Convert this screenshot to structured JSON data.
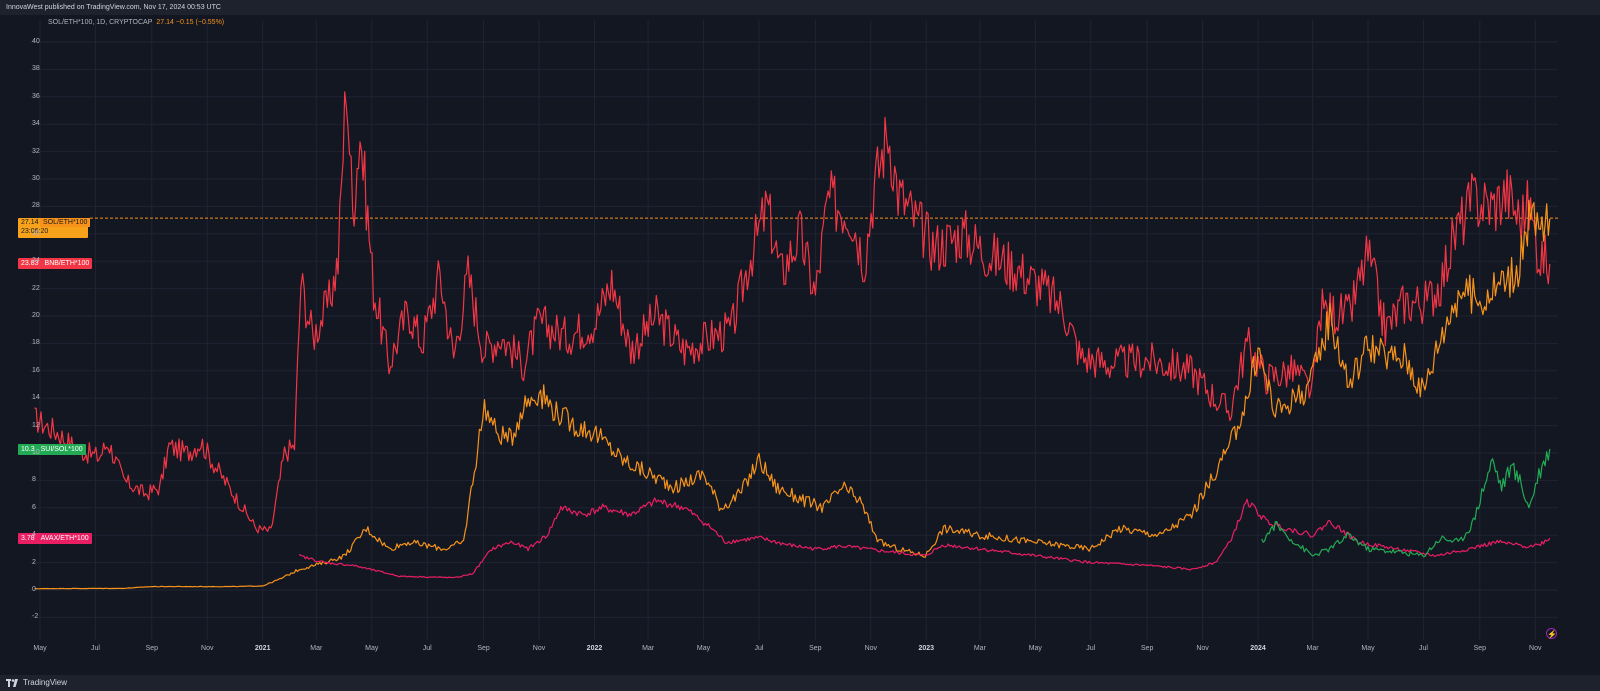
{
  "header": {
    "publisher_text": "InnovaWest published on TradingView.com, Nov 17, 2024 00:53 UTC"
  },
  "footer": {
    "brand": "TradingView"
  },
  "legend": {
    "symbol_text": "SOL/ETH*100, 1D, CRYPTOCAP",
    "value_text": "27.14 −0.15 (−0.55%)"
  },
  "badges": {
    "sol": {
      "value": "27.14",
      "name": "SOL/ETH*100",
      "time": "23:06:20"
    },
    "bnb": {
      "value": "23.83",
      "name": "BNB/ETH*100"
    },
    "sui": {
      "value": "10.3",
      "name": "SUI/SOL*100"
    },
    "avax": {
      "value": "3.78",
      "name": "AVAX/ETH*100"
    }
  },
  "icons": [
    "tradingview-logo-icon",
    "lightning-icon"
  ],
  "colors": {
    "background": "#131722",
    "grid": "#1f2433",
    "bnb": "#f23645",
    "sol": "#f7931a",
    "avax": "#e91e63",
    "sui": "#22ab54",
    "axis_text": "#b2b5be"
  },
  "chart_data": {
    "type": "line",
    "title": "",
    "xlabel": "",
    "ylabel": "",
    "ylim": [
      -3,
      41
    ],
    "yticks": [
      -2,
      0,
      2,
      4,
      6,
      8,
      10,
      12,
      14,
      16,
      18,
      20,
      22,
      24,
      26,
      28,
      30,
      32,
      34,
      36,
      38,
      40
    ],
    "x_ticks": [
      {
        "date": "2020-05-01",
        "label": "May"
      },
      {
        "date": "2020-07-01",
        "label": "Jul"
      },
      {
        "date": "2020-09-01",
        "label": "Sep"
      },
      {
        "date": "2020-11-01",
        "label": "Nov"
      },
      {
        "date": "2021-01-01",
        "label": "2021"
      },
      {
        "date": "2021-03-01",
        "label": "Mar"
      },
      {
        "date": "2021-05-01",
        "label": "May"
      },
      {
        "date": "2021-07-01",
        "label": "Jul"
      },
      {
        "date": "2021-09-01",
        "label": "Sep"
      },
      {
        "date": "2021-11-01",
        "label": "Nov"
      },
      {
        "date": "2022-01-01",
        "label": "2022"
      },
      {
        "date": "2022-03-01",
        "label": "Mar"
      },
      {
        "date": "2022-05-01",
        "label": "May"
      },
      {
        "date": "2022-07-01",
        "label": "Jul"
      },
      {
        "date": "2022-09-01",
        "label": "Sep"
      },
      {
        "date": "2022-11-01",
        "label": "Nov"
      },
      {
        "date": "2023-01-01",
        "label": "2023"
      },
      {
        "date": "2023-03-01",
        "label": "Mar"
      },
      {
        "date": "2023-05-01",
        "label": "May"
      },
      {
        "date": "2023-07-01",
        "label": "Jul"
      },
      {
        "date": "2023-09-01",
        "label": "Sep"
      },
      {
        "date": "2023-11-01",
        "label": "Nov"
      },
      {
        "date": "2024-01-01",
        "label": "2024"
      },
      {
        "date": "2024-03-01",
        "label": "Mar"
      },
      {
        "date": "2024-05-01",
        "label": "May"
      },
      {
        "date": "2024-07-01",
        "label": "Jul"
      },
      {
        "date": "2024-09-01",
        "label": "Sep"
      },
      {
        "date": "2024-11-01",
        "label": "Nov"
      }
    ],
    "x_range": [
      "2020-04-20",
      "2024-11-26"
    ],
    "horizontal_line": {
      "value": 27.14,
      "style": "dashed",
      "series": "SOL/ETH*100"
    },
    "series": [
      {
        "name": "BNB/ETH*100",
        "color": "#f23645",
        "points": [
          [
            "2020-04-25",
            12.5
          ],
          [
            "2020-05-20",
            11.5
          ],
          [
            "2020-06-10",
            10.3
          ],
          [
            "2020-07-05",
            9.7
          ],
          [
            "2020-07-15",
            10.8
          ],
          [
            "2020-08-01",
            8.0
          ],
          [
            "2020-08-25",
            7.0
          ],
          [
            "2020-09-10",
            7.5
          ],
          [
            "2020-09-20",
            10.5
          ],
          [
            "2020-10-10",
            10.0
          ],
          [
            "2020-10-25",
            10.8
          ],
          [
            "2020-11-10",
            9.0
          ],
          [
            "2020-12-05",
            6.5
          ],
          [
            "2020-12-25",
            4.5
          ],
          [
            "2021-01-10",
            4.3
          ],
          [
            "2021-01-25",
            10.0
          ],
          [
            "2021-02-05",
            10.5
          ],
          [
            "2021-02-12",
            22.5
          ],
          [
            "2021-02-25",
            18.5
          ],
          [
            "2021-03-15",
            21.0
          ],
          [
            "2021-03-25",
            24.0
          ],
          [
            "2021-04-03",
            37.5
          ],
          [
            "2021-04-10",
            27.5
          ],
          [
            "2021-04-18",
            33.5
          ],
          [
            "2021-04-25",
            28.5
          ],
          [
            "2021-05-03",
            22.0
          ],
          [
            "2021-05-20",
            16.5
          ],
          [
            "2021-06-10",
            20.5
          ],
          [
            "2021-06-25",
            18.0
          ],
          [
            "2021-07-15",
            23.0
          ],
          [
            "2021-07-30",
            17.0
          ],
          [
            "2021-08-15",
            23.0
          ],
          [
            "2021-09-01",
            17.5
          ],
          [
            "2021-09-20",
            18.5
          ],
          [
            "2021-10-15",
            16.5
          ],
          [
            "2021-11-01",
            19.5
          ],
          [
            "2021-12-01",
            18.5
          ],
          [
            "2022-01-01",
            19.5
          ],
          [
            "2022-01-20",
            22.5
          ],
          [
            "2022-02-10",
            17.5
          ],
          [
            "2022-03-10",
            20.0
          ],
          [
            "2022-04-10",
            17.5
          ],
          [
            "2022-05-10",
            18.5
          ],
          [
            "2022-06-01",
            19.0
          ],
          [
            "2022-06-20",
            24.0
          ],
          [
            "2022-07-10",
            28.0
          ],
          [
            "2022-07-25",
            23.0
          ],
          [
            "2022-08-15",
            26.0
          ],
          [
            "2022-09-01",
            21.5
          ],
          [
            "2022-09-15",
            28.5
          ],
          [
            "2022-10-10",
            27.5
          ],
          [
            "2022-10-25",
            24.0
          ],
          [
            "2022-11-05",
            29.5
          ],
          [
            "2022-11-20",
            33.5
          ],
          [
            "2022-12-01",
            29.0
          ],
          [
            "2022-12-20",
            27.0
          ],
          [
            "2023-01-10",
            25.0
          ],
          [
            "2023-02-10",
            26.0
          ],
          [
            "2023-03-10",
            24.5
          ],
          [
            "2023-04-10",
            23.5
          ],
          [
            "2023-05-10",
            22.0
          ],
          [
            "2023-06-01",
            20.5
          ],
          [
            "2023-06-20",
            17.0
          ],
          [
            "2023-07-20",
            16.5
          ],
          [
            "2023-09-01",
            16.8
          ],
          [
            "2023-10-20",
            16.0
          ],
          [
            "2023-11-15",
            14.0
          ],
          [
            "2023-12-01",
            13.0
          ],
          [
            "2023-12-10",
            15.5
          ],
          [
            "2023-12-20",
            18.0
          ],
          [
            "2024-01-10",
            15.5
          ],
          [
            "2024-02-10",
            16.0
          ],
          [
            "2024-03-01",
            14.5
          ],
          [
            "2024-03-10",
            20.5
          ],
          [
            "2024-04-10",
            20.0
          ],
          [
            "2024-05-01",
            24.5
          ],
          [
            "2024-05-20",
            19.0
          ],
          [
            "2024-06-10",
            21.0
          ],
          [
            "2024-07-05",
            21.0
          ],
          [
            "2024-07-20",
            22.5
          ],
          [
            "2024-08-05",
            26.0
          ],
          [
            "2024-08-25",
            28.5
          ],
          [
            "2024-09-15",
            28.0
          ],
          [
            "2024-10-01",
            29.0
          ],
          [
            "2024-10-15",
            27.0
          ],
          [
            "2024-10-25",
            28.0
          ],
          [
            "2024-11-05",
            24.5
          ],
          [
            "2024-11-17",
            23.8
          ]
        ]
      },
      {
        "name": "SOL/ETH*100",
        "color": "#f7931a",
        "points": [
          [
            "2020-04-25",
            0.1
          ],
          [
            "2020-08-01",
            0.12
          ],
          [
            "2020-09-01",
            0.25
          ],
          [
            "2020-12-01",
            0.25
          ],
          [
            "2021-01-01",
            0.3
          ],
          [
            "2021-01-20",
            0.8
          ],
          [
            "2021-02-10",
            1.5
          ],
          [
            "2021-03-10",
            2.0
          ],
          [
            "2021-04-01",
            2.5
          ],
          [
            "2021-04-25",
            4.5
          ],
          [
            "2021-05-20",
            3.0
          ],
          [
            "2021-06-10",
            3.5
          ],
          [
            "2021-07-20",
            3.0
          ],
          [
            "2021-08-10",
            3.5
          ],
          [
            "2021-08-20",
            8.0
          ],
          [
            "2021-09-02",
            13.5
          ],
          [
            "2021-09-15",
            11.5
          ],
          [
            "2021-10-01",
            11.0
          ],
          [
            "2021-10-15",
            13.5
          ],
          [
            "2021-11-01",
            14.5
          ],
          [
            "2021-11-20",
            13.0
          ],
          [
            "2021-12-10",
            12.0
          ],
          [
            "2022-01-01",
            11.5
          ],
          [
            "2022-02-01",
            9.5
          ],
          [
            "2022-03-01",
            8.5
          ],
          [
            "2022-04-01",
            7.5
          ],
          [
            "2022-05-01",
            8.5
          ],
          [
            "2022-05-20",
            6.0
          ],
          [
            "2022-06-10",
            7.0
          ],
          [
            "2022-07-01",
            9.5
          ],
          [
            "2022-07-20",
            7.5
          ],
          [
            "2022-08-20",
            6.5
          ],
          [
            "2022-09-10",
            6.0
          ],
          [
            "2022-10-01",
            7.5
          ],
          [
            "2022-10-20",
            6.5
          ],
          [
            "2022-11-10",
            3.5
          ],
          [
            "2022-12-01",
            3.0
          ],
          [
            "2022-12-31",
            2.5
          ],
          [
            "2023-01-20",
            4.5
          ],
          [
            "2023-03-01",
            4.0
          ],
          [
            "2023-05-01",
            3.5
          ],
          [
            "2023-07-01",
            3.0
          ],
          [
            "2023-08-01",
            4.5
          ],
          [
            "2023-09-15",
            4.0
          ],
          [
            "2023-10-20",
            5.5
          ],
          [
            "2023-11-10",
            8.0
          ],
          [
            "2023-12-01",
            10.5
          ],
          [
            "2023-12-20",
            14.0
          ],
          [
            "2024-01-01",
            17.5
          ],
          [
            "2024-01-20",
            13.0
          ],
          [
            "2024-02-20",
            14.5
          ],
          [
            "2024-03-01",
            15.5
          ],
          [
            "2024-03-20",
            20.0
          ],
          [
            "2024-04-10",
            15.0
          ],
          [
            "2024-05-01",
            18.0
          ],
          [
            "2024-05-20",
            17.0
          ],
          [
            "2024-06-10",
            17.0
          ],
          [
            "2024-07-01",
            14.5
          ],
          [
            "2024-07-20",
            18.5
          ],
          [
            "2024-08-10",
            22.0
          ],
          [
            "2024-09-01",
            21.0
          ],
          [
            "2024-09-25",
            22.5
          ],
          [
            "2024-10-15",
            23.5
          ],
          [
            "2024-10-25",
            27.5
          ],
          [
            "2024-11-05",
            26.0
          ],
          [
            "2024-11-17",
            27.1
          ]
        ]
      },
      {
        "name": "AVAX/ETH*100",
        "color": "#e91e63",
        "points": [
          [
            "2021-02-10",
            2.5
          ],
          [
            "2021-03-10",
            2.0
          ],
          [
            "2021-04-10",
            1.8
          ],
          [
            "2021-06-01",
            1.0
          ],
          [
            "2021-08-01",
            0.9
          ],
          [
            "2021-08-20",
            1.2
          ],
          [
            "2021-09-10",
            3.0
          ],
          [
            "2021-10-01",
            3.5
          ],
          [
            "2021-10-20",
            3.0
          ],
          [
            "2021-11-10",
            4.0
          ],
          [
            "2021-11-25",
            6.0
          ],
          [
            "2021-12-20",
            5.5
          ],
          [
            "2022-01-10",
            6.0
          ],
          [
            "2022-02-10",
            5.5
          ],
          [
            "2022-03-10",
            6.5
          ],
          [
            "2022-04-10",
            6.0
          ],
          [
            "2022-05-10",
            4.5
          ],
          [
            "2022-05-25",
            3.5
          ],
          [
            "2022-07-01",
            3.8
          ],
          [
            "2022-08-01",
            3.3
          ],
          [
            "2022-09-01",
            3.0
          ],
          [
            "2022-10-01",
            3.2
          ],
          [
            "2022-11-20",
            2.8
          ],
          [
            "2022-12-31",
            2.5
          ],
          [
            "2023-01-20",
            3.3
          ],
          [
            "2023-03-01",
            3.0
          ],
          [
            "2023-05-01",
            2.5
          ],
          [
            "2023-07-01",
            2.0
          ],
          [
            "2023-09-01",
            1.8
          ],
          [
            "2023-10-20",
            1.5
          ],
          [
            "2023-11-15",
            2.0
          ],
          [
            "2023-12-01",
            3.5
          ],
          [
            "2023-12-20",
            6.5
          ],
          [
            "2024-01-10",
            5.0
          ],
          [
            "2024-02-01",
            4.5
          ],
          [
            "2024-03-01",
            4.0
          ],
          [
            "2024-03-20",
            5.0
          ],
          [
            "2024-04-20",
            3.5
          ],
          [
            "2024-06-01",
            3.0
          ],
          [
            "2024-07-15",
            2.5
          ],
          [
            "2024-08-20",
            3.0
          ],
          [
            "2024-09-20",
            3.5
          ],
          [
            "2024-10-20",
            3.2
          ],
          [
            "2024-11-05",
            3.3
          ],
          [
            "2024-11-17",
            3.78
          ]
        ]
      },
      {
        "name": "SUI/SOL*100",
        "color": "#22ab54",
        "points": [
          [
            "2024-01-05",
            3.5
          ],
          [
            "2024-01-20",
            4.8
          ],
          [
            "2024-02-10",
            3.5
          ],
          [
            "2024-03-01",
            2.5
          ],
          [
            "2024-03-20",
            3.0
          ],
          [
            "2024-04-10",
            4.0
          ],
          [
            "2024-05-01",
            3.0
          ],
          [
            "2024-06-01",
            2.8
          ],
          [
            "2024-07-01",
            2.5
          ],
          [
            "2024-07-20",
            3.8
          ],
          [
            "2024-08-10",
            3.5
          ],
          [
            "2024-08-25",
            5.0
          ],
          [
            "2024-09-05",
            7.5
          ],
          [
            "2024-09-15",
            9.5
          ],
          [
            "2024-09-25",
            7.5
          ],
          [
            "2024-10-05",
            9.0
          ],
          [
            "2024-10-15",
            8.0
          ],
          [
            "2024-10-25",
            6.0
          ],
          [
            "2024-11-05",
            8.5
          ],
          [
            "2024-11-17",
            10.3
          ]
        ]
      }
    ]
  }
}
